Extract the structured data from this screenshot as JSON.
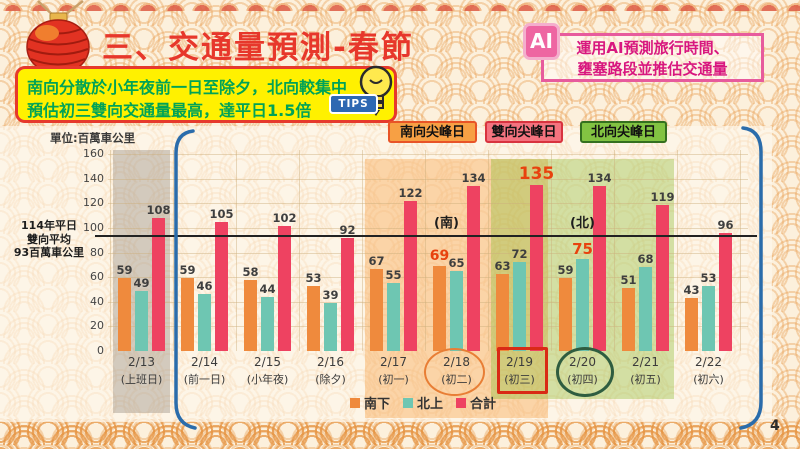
{
  "page": {
    "number": "4"
  },
  "header": {
    "title": "三、交通量預測-春節",
    "tips": {
      "badge": "TIPS",
      "line1": "南向分散於小年夜前一日至除夕，北向較集中",
      "line2": "預估初三雙向交通量最高，達平日1.5倍"
    },
    "ai_note": {
      "badge": "AI",
      "line1": "運用AI預測旅行時間、",
      "line2": "壅塞路段並推估交通量"
    }
  },
  "chart": {
    "unit_label": "單位:百萬車公里",
    "baseline_note": [
      "114年平日",
      "雙向平均",
      "93百萬車公里"
    ],
    "baseline_value": 93,
    "y_ticks": [
      0,
      20,
      40,
      60,
      80,
      100,
      120,
      140,
      160
    ],
    "peak_badges": [
      {
        "label": "南向尖峰日",
        "type": "south"
      },
      {
        "label": "雙向尖峰日",
        "type": "both"
      },
      {
        "label": "北向尖峰日",
        "type": "north"
      }
    ],
    "direction_labels": {
      "south": "(南)",
      "north": "(北)"
    },
    "legend": [
      {
        "label": "南下",
        "color": "#ef8a3d"
      },
      {
        "label": "北上",
        "color": "#6ec6b2"
      },
      {
        "label": "合計",
        "color": "#ee4261"
      }
    ],
    "zones": [
      {
        "type": "gray",
        "from": 0,
        "to": 0
      },
      {
        "type": "south",
        "from": 4,
        "to": 6
      },
      {
        "type": "north",
        "from": 6,
        "to": 8
      }
    ],
    "groups": [
      {
        "date": "2/13",
        "sublabel": "(上班日)",
        "values": {
          "south": 59,
          "north": 49,
          "total": 108
        }
      },
      {
        "date": "2/14",
        "sublabel": "(前一日)",
        "values": {
          "south": 59,
          "north": 46,
          "total": 105
        }
      },
      {
        "date": "2/15",
        "sublabel": "(小年夜)",
        "values": {
          "south": 58,
          "north": 44,
          "total": 102
        }
      },
      {
        "date": "2/16",
        "sublabel": "(除夕)",
        "values": {
          "south": 53,
          "north": 39,
          "total": 92
        }
      },
      {
        "date": "2/17",
        "sublabel": "(初一)",
        "values": {
          "south": 67,
          "north": 55,
          "total": 122
        }
      },
      {
        "date": "2/18",
        "sublabel": "(初二)",
        "values": {
          "south": 69,
          "north": 65,
          "total": 134
        },
        "highlight": [
          "south"
        ],
        "marker": "ellipse-orange"
      },
      {
        "date": "2/19",
        "sublabel": "(初三)",
        "values": {
          "south": 63,
          "north": 72,
          "total": 135
        },
        "highlight": [
          "total"
        ],
        "marker": "rect-red"
      },
      {
        "date": "2/20",
        "sublabel": "(初四)",
        "values": {
          "south": 59,
          "north": 75,
          "total": 134
        },
        "highlight": [
          "north"
        ],
        "marker": "ellipse-green"
      },
      {
        "date": "2/21",
        "sublabel": "(初五)",
        "values": {
          "south": 51,
          "north": 68,
          "total": 119
        }
      },
      {
        "date": "2/22",
        "sublabel": "(初六)",
        "values": {
          "south": 43,
          "north": 53,
          "total": 96
        }
      }
    ]
  },
  "chart_data": {
    "type": "bar",
    "title": "三、交通量預測-春節",
    "ylabel": "單位:百萬車公里",
    "ylim": [
      0,
      160
    ],
    "grid": true,
    "legend_position": "bottom",
    "categories": [
      "2/13 (上班日)",
      "2/14 (前一日)",
      "2/15 (小年夜)",
      "2/16 (除夕)",
      "2/17 (初一)",
      "2/18 (初二)",
      "2/19 (初三)",
      "2/20 (初四)",
      "2/21 (初五)",
      "2/22 (初六)"
    ],
    "series": [
      {
        "name": "南下",
        "values": [
          59,
          59,
          58,
          53,
          67,
          69,
          63,
          59,
          51,
          43
        ]
      },
      {
        "name": "北上",
        "values": [
          49,
          46,
          44,
          39,
          55,
          65,
          72,
          75,
          68,
          53
        ]
      },
      {
        "name": "合計",
        "values": [
          108,
          105,
          102,
          92,
          122,
          134,
          135,
          134,
          119,
          96
        ]
      }
    ],
    "reference_line": {
      "value": 93,
      "label": "114年平日雙向平均93百萬車公里"
    },
    "annotations": [
      "南向尖峰日: 2/17-2/19",
      "雙向尖峰日: 2/19",
      "北向尖峰日: 2/19-2/21",
      "(南)",
      "(北)"
    ]
  }
}
